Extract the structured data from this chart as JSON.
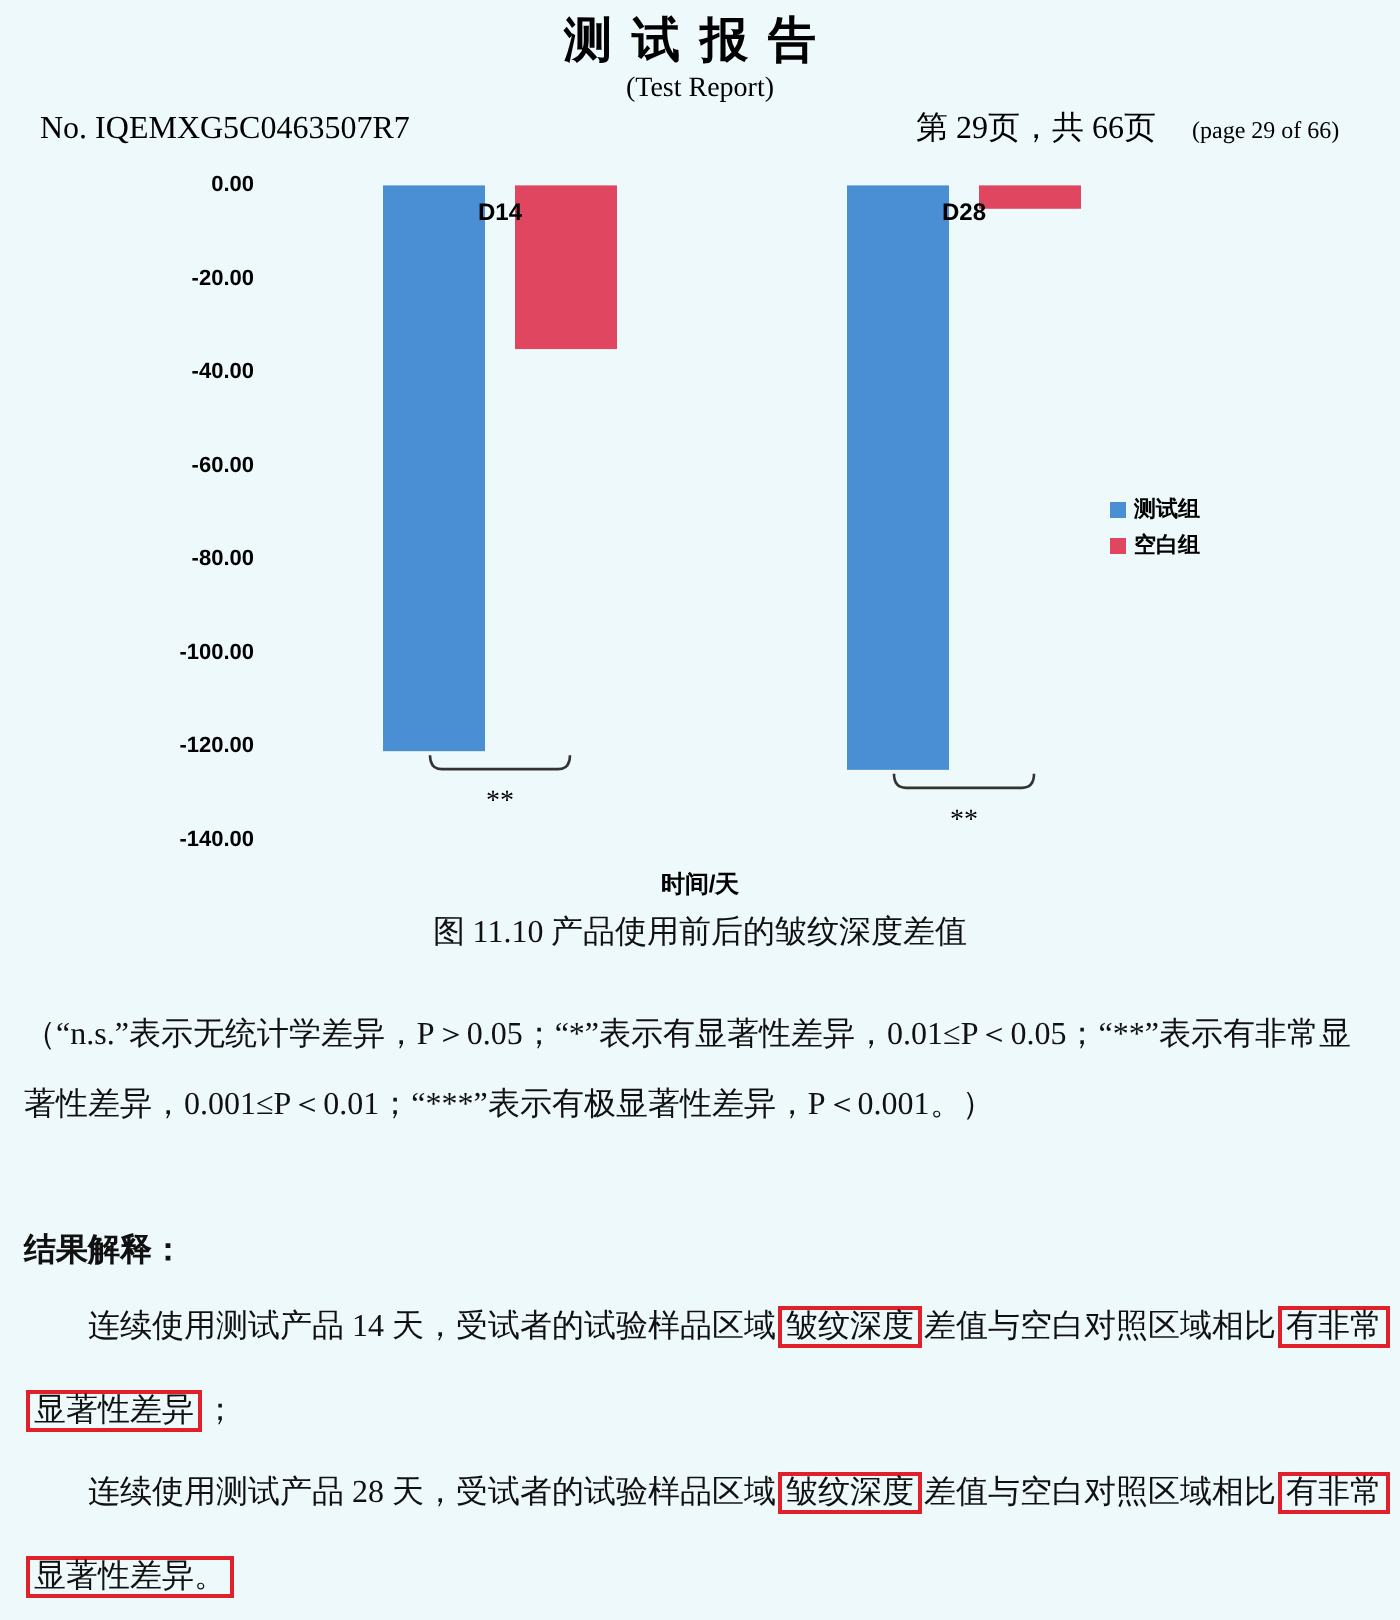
{
  "chart_data": {
    "type": "bar",
    "title": "测试报告",
    "subtitle": "(Test Report)",
    "xlabel": "时间/天",
    "categories": [
      "D14",
      "D28"
    ],
    "series": [
      {
        "name": "测试组",
        "color": "#4a8fd4",
        "values": [
          -121,
          -125
        ]
      },
      {
        "name": "空白组",
        "color": "#e0465f",
        "values": [
          -35,
          -5
        ]
      }
    ],
    "ylim": [
      -140,
      0
    ],
    "yticks": [
      {
        "value": 0,
        "label": "0.00"
      },
      {
        "value": -20,
        "label": "-20.00"
      },
      {
        "value": -40,
        "label": "-40.00"
      },
      {
        "value": -60,
        "label": "-60.00"
      },
      {
        "value": -80,
        "label": "-80.00"
      },
      {
        "value": -100,
        "label": "-100.00"
      },
      {
        "value": -120,
        "label": "-120.00"
      },
      {
        "value": -140,
        "label": "-140.00"
      }
    ],
    "legend": "right",
    "annotations": [
      "No. IQEMXG5C0463507R7",
      "第 29页，共 66页",
      "(page 29 of 66)",
      "图  11.10 产品使用前后的皱纹深度差值",
      "（“n.s.”表示无统计学差异，P＞0.05；“*”表示有显著性差异，0.01≤P＜0.05；“**”表示有非常显著性差异，0.001≤P＜0.01；“***”表示有极显著性差异，P＜0.001。）",
      "结果解释：",
      "连续使用测试产品 14 天，受试者的试验样品区域",
      "皱纹深度",
      "差值与空白对照区域相比",
      "有非常显著性差异",
      "；",
      "连续使用测试产品 28 天，受试者的试验样品区域",
      "皱纹深度",
      "差值与空白对照区域相比",
      "有非常显著性差异。",
      "**",
      "**"
    ]
  }
}
